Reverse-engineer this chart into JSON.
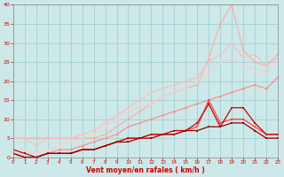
{
  "xlabel": "Vent moyen/en rafales ( km/h )",
  "xlim": [
    0,
    23
  ],
  "ylim": [
    0,
    40
  ],
  "xticks": [
    0,
    1,
    2,
    3,
    4,
    5,
    6,
    7,
    8,
    9,
    10,
    11,
    12,
    13,
    14,
    15,
    16,
    17,
    18,
    19,
    20,
    21,
    22,
    23
  ],
  "yticks": [
    0,
    5,
    10,
    15,
    20,
    25,
    30,
    35,
    40
  ],
  "bg_color": "#cce8e8",
  "grid_color": "#99cccc",
  "series": [
    {
      "color": "#ffaaaa",
      "lw": 0.8,
      "marker": "D",
      "ms": 1.5,
      "x": [
        0,
        1,
        2,
        3,
        4,
        5,
        6,
        7,
        8,
        9,
        10,
        11,
        12,
        13,
        14,
        15,
        16,
        17,
        18,
        19,
        20,
        21,
        22,
        23
      ],
      "y": [
        5,
        5,
        5,
        5,
        5,
        5,
        5,
        5,
        6,
        8,
        10,
        12,
        14,
        16,
        17,
        18,
        19,
        26,
        35,
        40,
        28,
        25,
        24,
        27
      ]
    },
    {
      "color": "#ffbbbb",
      "lw": 0.8,
      "marker": "D",
      "ms": 1.5,
      "x": [
        0,
        1,
        2,
        3,
        4,
        5,
        6,
        7,
        8,
        9,
        10,
        11,
        12,
        13,
        14,
        15,
        16,
        17,
        18,
        19,
        20,
        21,
        22,
        23
      ],
      "y": [
        5,
        5,
        3,
        5,
        5,
        5,
        6,
        7,
        9,
        11,
        13,
        15,
        17,
        18,
        19,
        20,
        21,
        25,
        27,
        30,
        26,
        27,
        24,
        26
      ]
    },
    {
      "color": "#ffcccc",
      "lw": 0.8,
      "marker": "D",
      "ms": 1.5,
      "x": [
        0,
        1,
        2,
        3,
        4,
        5,
        6,
        7,
        8,
        9,
        10,
        11,
        12,
        13,
        14,
        15,
        16,
        17,
        18,
        19,
        20,
        21,
        22,
        23
      ],
      "y": [
        2,
        2,
        1,
        2,
        3,
        4,
        5,
        6,
        8,
        10,
        12,
        13,
        14,
        16,
        17,
        18,
        20,
        22,
        25,
        26,
        24,
        23,
        22,
        25
      ]
    },
    {
      "color": "#ff8888",
      "lw": 0.8,
      "marker": "D",
      "ms": 1.5,
      "x": [
        0,
        1,
        2,
        3,
        4,
        5,
        6,
        7,
        8,
        9,
        10,
        11,
        12,
        13,
        14,
        15,
        16,
        17,
        18,
        19,
        20,
        21,
        22,
        23
      ],
      "y": [
        1,
        0,
        0,
        1,
        2,
        2,
        3,
        4,
        5,
        6,
        8,
        9,
        10,
        11,
        12,
        13,
        14,
        15,
        16,
        17,
        18,
        19,
        18,
        21
      ]
    },
    {
      "color": "#ff4444",
      "lw": 0.9,
      "marker": "s",
      "ms": 1.5,
      "x": [
        0,
        1,
        2,
        3,
        4,
        5,
        6,
        7,
        8,
        9,
        10,
        11,
        12,
        13,
        14,
        15,
        16,
        17,
        18,
        19,
        20,
        21,
        22,
        23
      ],
      "y": [
        1,
        0,
        0,
        1,
        1,
        1,
        2,
        2,
        3,
        4,
        5,
        5,
        6,
        6,
        6,
        7,
        8,
        15,
        9,
        10,
        10,
        8,
        6,
        6
      ]
    },
    {
      "color": "#cc0000",
      "lw": 0.9,
      "marker": "s",
      "ms": 1.5,
      "x": [
        0,
        1,
        2,
        3,
        4,
        5,
        6,
        7,
        8,
        9,
        10,
        11,
        12,
        13,
        14,
        15,
        16,
        17,
        18,
        19,
        20,
        21,
        22,
        23
      ],
      "y": [
        2,
        1,
        0,
        1,
        1,
        1,
        2,
        2,
        3,
        4,
        5,
        5,
        6,
        6,
        7,
        7,
        9,
        14,
        8,
        13,
        13,
        9,
        6,
        6
      ]
    },
    {
      "color": "#990000",
      "lw": 0.9,
      "marker": "s",
      "ms": 1.5,
      "x": [
        0,
        1,
        2,
        3,
        4,
        5,
        6,
        7,
        8,
        9,
        10,
        11,
        12,
        13,
        14,
        15,
        16,
        17,
        18,
        19,
        20,
        21,
        22,
        23
      ],
      "y": [
        1,
        0,
        0,
        1,
        1,
        1,
        2,
        2,
        3,
        4,
        4,
        5,
        5,
        6,
        6,
        7,
        7,
        8,
        8,
        9,
        9,
        7,
        5,
        5
      ]
    }
  ]
}
